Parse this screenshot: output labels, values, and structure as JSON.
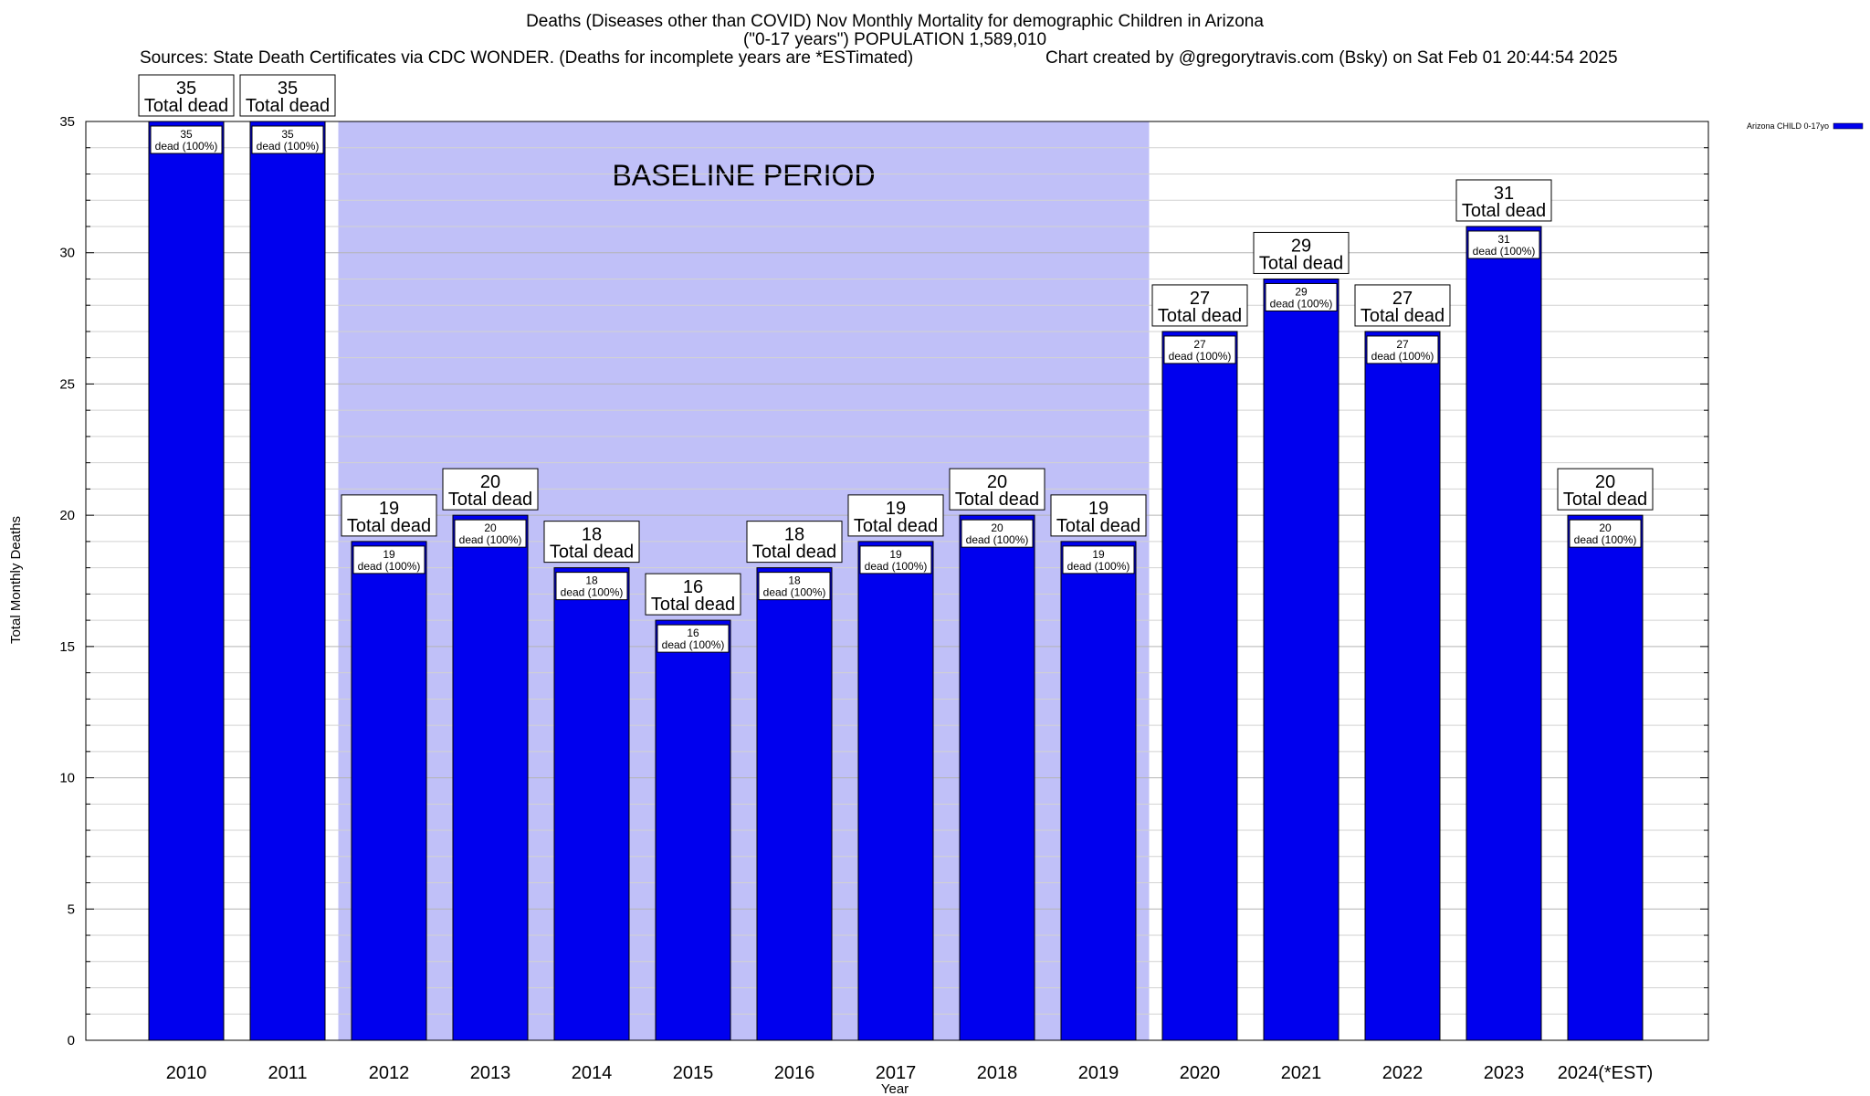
{
  "chart_data": {
    "type": "bar",
    "title": "Deaths (Diseases other than COVID) Nov Monthly Mortality for demographic Children in Arizona",
    "subtitle": "(\"0-17 years\") POPULATION 1,589,010",
    "sources": "Sources: State Death Certificates via CDC WONDER. (Deaths for incomplete years are *ESTimated)",
    "credit": "Chart created by @gregorytravis.com (Bsky) on Sat Feb 01 20:44:54 2025",
    "xlabel": "Year",
    "ylabel": "Total Monthly Deaths",
    "ylim": [
      0,
      35
    ],
    "yticks": [
      0,
      5,
      10,
      15,
      20,
      25,
      30,
      35
    ],
    "categories": [
      "2010",
      "2011",
      "2012",
      "2013",
      "2014",
      "2015",
      "2016",
      "2017",
      "2018",
      "2019",
      "2020",
      "2021",
      "2022",
      "2023",
      "2024(*EST)"
    ],
    "series": [
      {
        "name": "Arizona CHILD 0-17yo",
        "color": "#0000ee",
        "values": [
          35,
          35,
          19,
          20,
          18,
          16,
          18,
          19,
          20,
          19,
          27,
          29,
          27,
          31,
          20
        ]
      }
    ],
    "top_label_suffix": "Total dead",
    "inner_label_suffix": "dead (100%)",
    "baseline_period": {
      "label": "BASELINE PERIOD",
      "start_category": "2012",
      "end_category": "2019",
      "color": "#c0c0f8"
    },
    "grid": true,
    "legend_position": "top-right"
  }
}
